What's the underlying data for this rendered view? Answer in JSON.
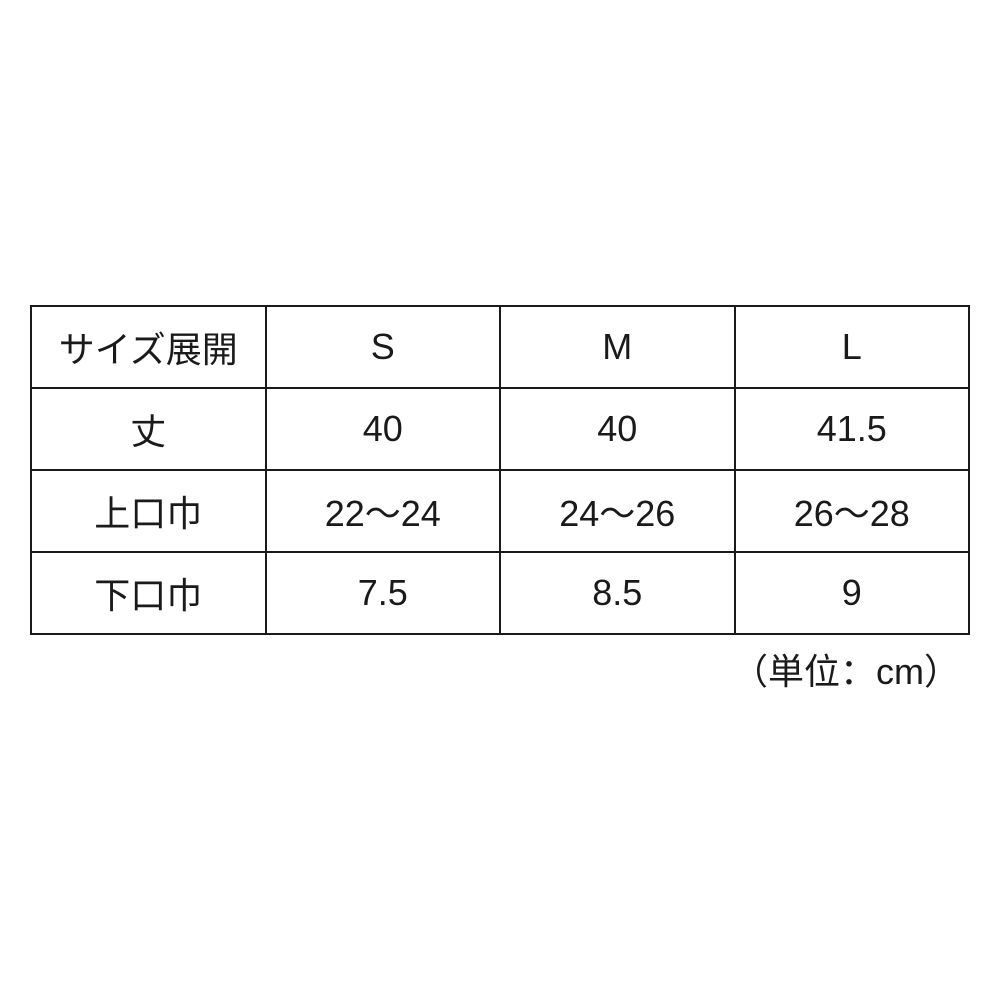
{
  "table": {
    "type": "table",
    "border_color": "#1a1a1a",
    "border_width": 2,
    "background_color": "#ffffff",
    "text_color": "#1a1a1a",
    "font_size": 36,
    "columns": [
      "サイズ展開",
      "S",
      "M",
      "L"
    ],
    "rows": [
      {
        "label": "サイズ展開",
        "values": [
          "S",
          "M",
          "L"
        ]
      },
      {
        "label": "丈",
        "values": [
          "40",
          "40",
          "41.5"
        ]
      },
      {
        "label": "上口巾",
        "values": [
          "22～24",
          "24～26",
          "26～28"
        ]
      },
      {
        "label": "下口巾",
        "values": [
          "7.5",
          "8.5",
          "9"
        ]
      }
    ],
    "column_widths": [
      "25%",
      "25%",
      "25%",
      "25%"
    ]
  },
  "unit_label": "（単位：cm）"
}
